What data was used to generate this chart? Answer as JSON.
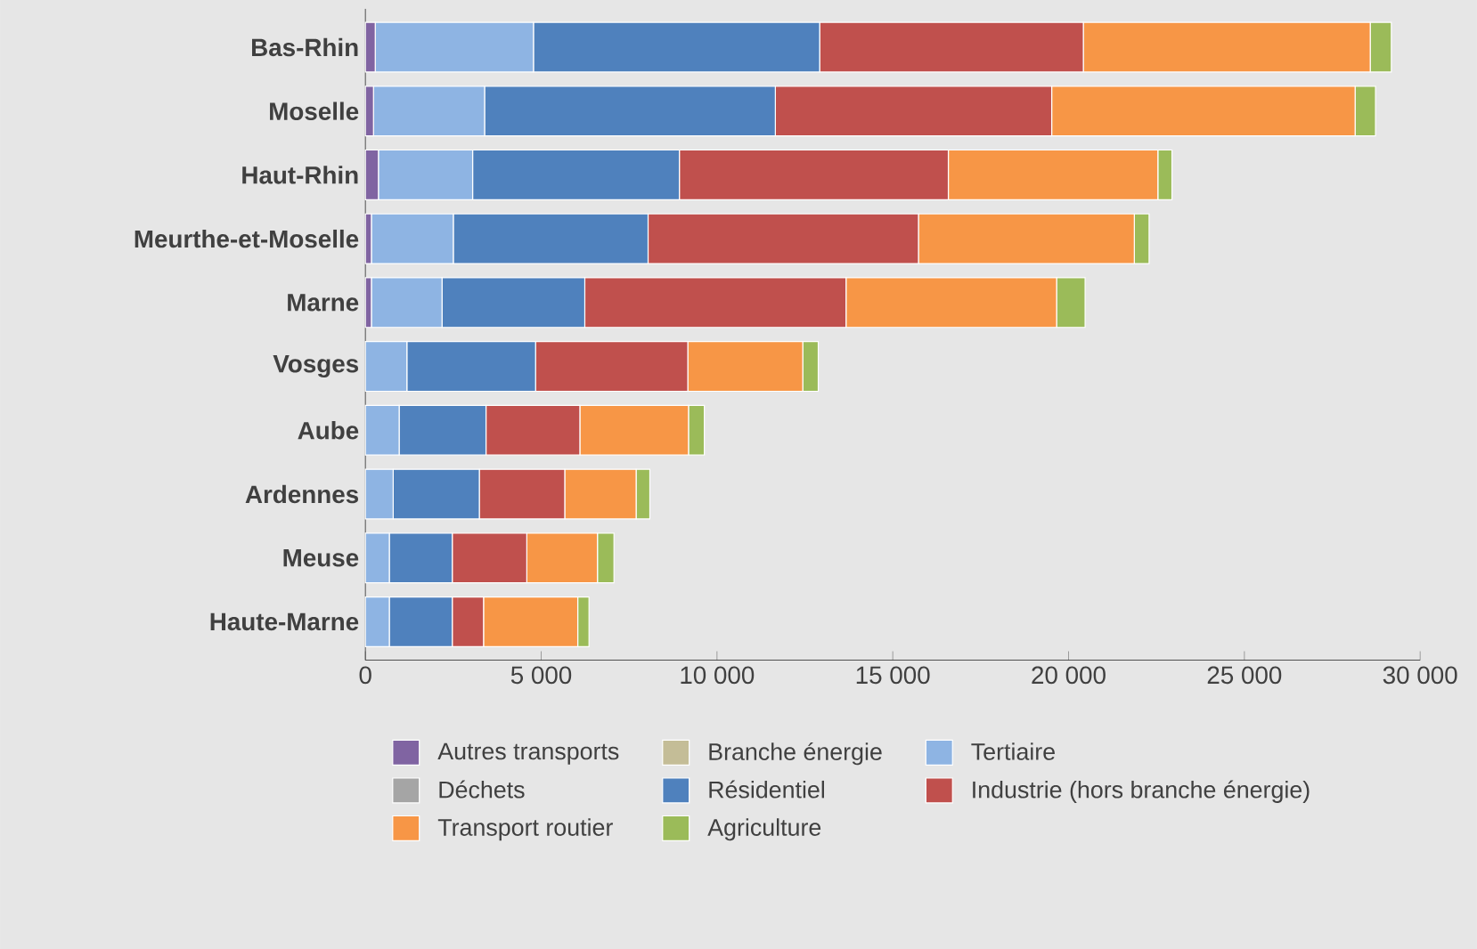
{
  "chart_data": {
    "type": "bar",
    "orientation": "horizontal",
    "stacked": true,
    "categories": [
      "Bas-Rhin",
      "Moselle",
      "Haut-Rhin",
      "Meurthe-et-Moselle",
      "Marne",
      "Vosges",
      "Aube",
      "Ardennes",
      "Meuse",
      "Haute-Marne"
    ],
    "series": [
      {
        "name": "Autres transports",
        "color": "#8064a2",
        "values": [
          280,
          230,
          370,
          170,
          170,
          null,
          null,
          null,
          null,
          null
        ]
      },
      {
        "name": "Branche énergie",
        "color": "#c4bd97",
        "values": [
          0,
          0,
          0,
          0,
          0,
          0,
          0,
          0,
          0,
          0
        ]
      },
      {
        "name": "Tertiaire",
        "color": "#8eb4e3",
        "values": [
          4500,
          3160,
          2680,
          2330,
          2010,
          1180,
          960,
          790,
          680,
          680
        ]
      },
      {
        "name": "Déchets",
        "color": "#a5a5a5",
        "values": [
          0,
          0,
          0,
          0,
          0,
          0,
          0,
          0,
          0,
          0
        ]
      },
      {
        "name": "Résidentiel",
        "color": "#4f81bd",
        "values": [
          8140,
          8270,
          5880,
          5540,
          4060,
          3660,
          2470,
          2450,
          1790,
          1790
        ]
      },
      {
        "name": "Industrie (hors branche énergie)",
        "color": "#c0504d",
        "values": [
          7500,
          7860,
          7650,
          7690,
          7430,
          4330,
          2670,
          2430,
          2120,
          890
        ]
      },
      {
        "name": "Transport routier",
        "color": "#f79646",
        "values": [
          8160,
          8630,
          5960,
          6140,
          5990,
          3270,
          3090,
          2030,
          2010,
          2680
        ]
      },
      {
        "name": "Agriculture",
        "color": "#9bbb59",
        "values": [
          600,
          580,
          400,
          420,
          810,
          440,
          450,
          390,
          470,
          320
        ]
      }
    ],
    "xlim": [
      0,
      30000
    ],
    "xticks": [
      0,
      {
        "value": 5000,
        "label": "5 000"
      },
      {
        "value": 10000,
        "label": "10 000"
      },
      {
        "value": 15000,
        "label": "15 000"
      },
      {
        "value": 20000,
        "label": "20 000"
      },
      {
        "value": 25000,
        "label": "25 000"
      },
      {
        "value": 30000,
        "label": "30 000"
      }
    ],
    "grid": false,
    "legend": "bottom"
  }
}
